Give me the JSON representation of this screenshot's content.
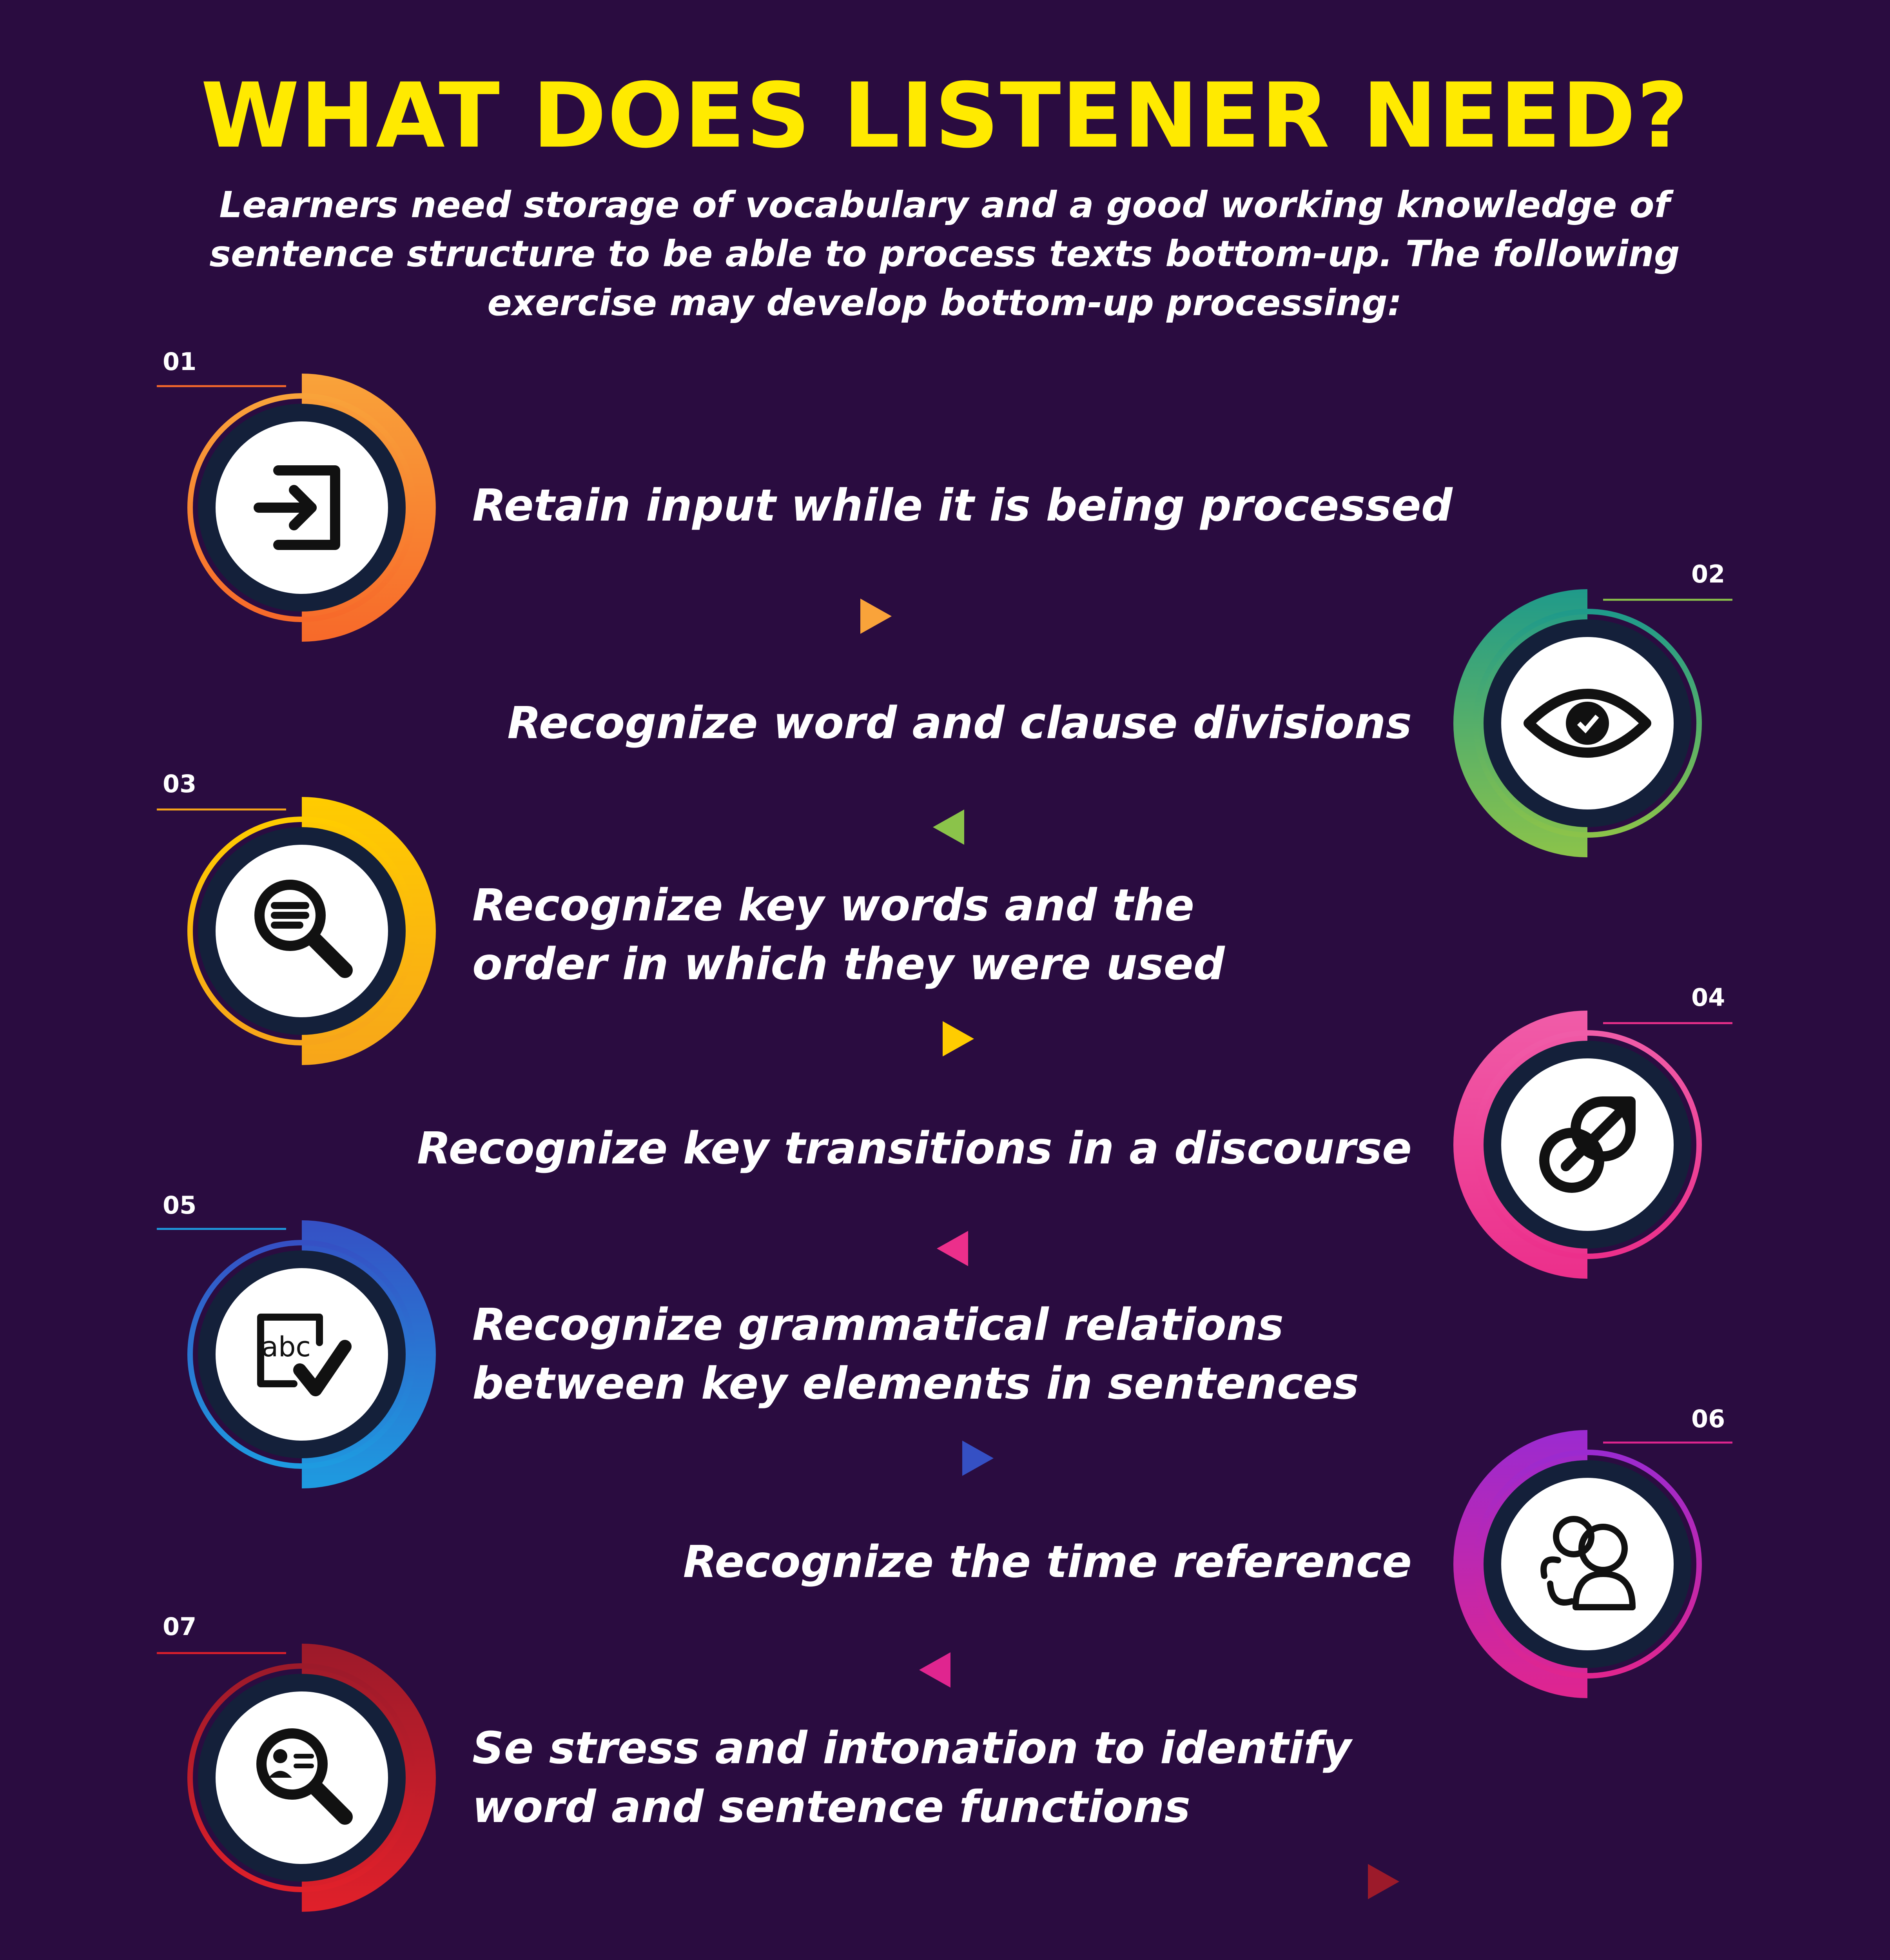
{
  "title": "WHAT DOES LISTENER NEED?",
  "subtitle": "Learners need storage of vocabulary and a good working knowledge of sentence structure to be able to process texts bottom-up. The following exercise may develop bottom-up processing:",
  "steps": [
    {
      "number": "01",
      "text": "Retain input while it is being processed",
      "icon": "sign-in-icon",
      "color": "#f7692a",
      "color2": "#f9a33a"
    },
    {
      "number": "02",
      "text": "Recognize word and clause divisions",
      "icon": "eye-check-icon",
      "color": "#8bc34a",
      "color2": "#1f9a8a"
    },
    {
      "number": "03",
      "text": "Recognize key words and the order in which they were used",
      "icon": "search-text-icon",
      "color": "#f7a51a",
      "color2": "#ffcc00"
    },
    {
      "number": "04",
      "text": "Recognize key transitions in a discourse",
      "icon": "transition-arrow-icon",
      "color": "#ec2f8b",
      "color2": "#f05ca8"
    },
    {
      "number": "05",
      "text": "Recognize grammatical relations between key elements in sentences",
      "icon": "abc-check-icon",
      "color": "#1e9be0",
      "color2": "#3550c4"
    },
    {
      "number": "06",
      "text": "Recognize the time reference",
      "icon": "users-refresh-icon",
      "color": "#e0258f",
      "color2": "#9b2ad0"
    },
    {
      "number": "07",
      "text": "Se stress and intonation to identify word and sentence functions",
      "icon": "search-person-icon",
      "color": "#e0202a",
      "color2": "#9c1a2a"
    }
  ]
}
